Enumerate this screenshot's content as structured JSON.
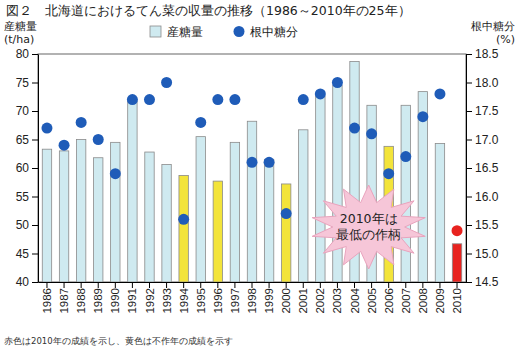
{
  "chart_data": {
    "type": "bar",
    "title": "図２　北海道におけるてん菜の収量の推移（1986～2010年の25年）",
    "ylabel": [
      "産糖量",
      "(t/ha)"
    ],
    "y2label": [
      "根中糖分",
      "(%)"
    ],
    "annotation": [
      "2010年は",
      "最低の作柄"
    ],
    "note": "赤色は2010年の成績を示し、黄色は不作年の成績を示す",
    "categories": [
      "1986",
      "1987",
      "1988",
      "1989",
      "1990",
      "1991",
      "1992",
      "1993",
      "1994",
      "1995",
      "1996",
      "1997",
      "1998",
      "1999",
      "2000",
      "2001",
      "2002",
      "2003",
      "2004",
      "2005",
      "2006",
      "2007",
      "2008",
      "2009",
      "2010"
    ],
    "ylim": [
      40,
      80
    ],
    "yticks": [
      40,
      45,
      50,
      55,
      60,
      65,
      70,
      75,
      80
    ],
    "y2lim": [
      14.5,
      18.5
    ],
    "y2ticks": [
      14.5,
      {
        "value": 15,
        "label": "15.0"
      },
      15.5,
      {
        "value": 16,
        "label": "16.0"
      },
      16.5,
      {
        "value": 17,
        "label": "17.0"
      },
      17.5,
      {
        "value": 18,
        "label": "18.0"
      },
      18.5
    ],
    "grid": false,
    "legend": "top",
    "series": [
      {
        "name": "産糖量",
        "type": "bar",
        "color": "#cfeaf0",
        "colors": [
          "#cfeaf0",
          "#cfeaf0",
          "#cfeaf0",
          "#cfeaf0",
          "#cfeaf0",
          "#cfeaf0",
          "#cfeaf0",
          "#cfeaf0",
          "#f3e43a",
          "#cfeaf0",
          "#f3e43a",
          "#cfeaf0",
          "#cfeaf0",
          "#cfeaf0",
          "#f3e43a",
          "#cfeaf0",
          "#cfeaf0",
          "#cfeaf0",
          "#cfeaf0",
          "#cfeaf0",
          "#f3e43a",
          "#cfeaf0",
          "#cfeaf0",
          "#cfeaf0",
          "#e8231f"
        ],
        "values": [
          63.3,
          63.0,
          65.0,
          61.8,
          64.5,
          71.8,
          62.8,
          60.6,
          58.7,
          65.5,
          57.7,
          64.5,
          68.2,
          61.5,
          57.2,
          66.7,
          72.6,
          74.5,
          78.7,
          71.0,
          63.8,
          71.0,
          73.4,
          64.3,
          46.7
        ]
      },
      {
        "name": "根中糖分",
        "type": "scatter",
        "axis": "y2",
        "marker": "circle",
        "color": "#1f5cb8",
        "colors": [
          "#1f5cb8",
          "#1f5cb8",
          "#1f5cb8",
          "#1f5cb8",
          "#1f5cb8",
          "#1f5cb8",
          "#1f5cb8",
          "#1f5cb8",
          "#1f5cb8",
          "#1f5cb8",
          "#1f5cb8",
          "#1f5cb8",
          "#1f5cb8",
          "#1f5cb8",
          "#1f5cb8",
          "#1f5cb8",
          "#1f5cb8",
          "#1f5cb8",
          "#1f5cb8",
          "#1f5cb8",
          "#1f5cb8",
          "#1f5cb8",
          "#1f5cb8",
          "#1f5cb8",
          "#e8231f"
        ],
        "values": [
          17.2,
          16.9,
          17.3,
          17.0,
          16.4,
          17.7,
          17.7,
          18.0,
          15.6,
          17.3,
          17.7,
          17.7,
          16.6,
          16.6,
          15.7,
          17.7,
          17.8,
          18.0,
          17.2,
          17.1,
          16.4,
          16.7,
          17.4,
          17.8,
          15.4
        ]
      }
    ]
  }
}
